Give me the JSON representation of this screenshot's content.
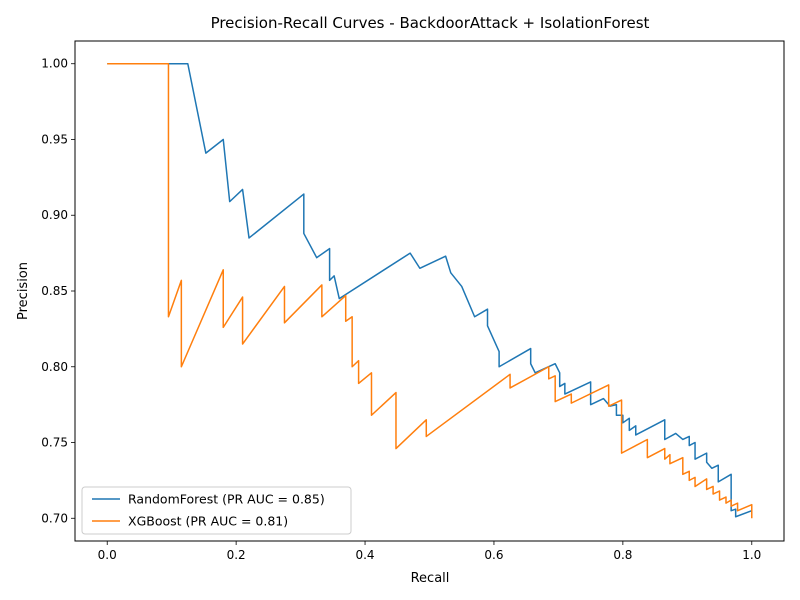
{
  "chart_data": {
    "type": "line",
    "title": "Precision-Recall Curves - BackdoorAttack + IsolationForest",
    "xlabel": "Recall",
    "ylabel": "Precision",
    "xlim": [
      -0.05,
      1.05
    ],
    "ylim": [
      0.685,
      1.015
    ],
    "xticks": [
      0.0,
      0.2,
      0.4,
      0.6,
      0.8,
      1.0
    ],
    "xtick_labels": [
      "0.0",
      "0.2",
      "0.4",
      "0.6",
      "0.8",
      "1.0"
    ],
    "yticks": [
      0.7,
      0.75,
      0.8,
      0.85,
      0.9,
      0.95,
      1.0
    ],
    "ytick_labels": [
      "0.70",
      "0.75",
      "0.80",
      "0.85",
      "0.90",
      "0.95",
      "1.00"
    ],
    "grid": false,
    "legend_position": "lower-left",
    "series": [
      {
        "name": "RandomForest (PR AUC = 0.85)",
        "color": "#1f77b4",
        "points": [
          [
            0.0,
            1.0
          ],
          [
            0.125,
            1.0
          ],
          [
            0.153,
            0.941
          ],
          [
            0.18,
            0.95
          ],
          [
            0.19,
            0.909
          ],
          [
            0.21,
            0.917
          ],
          [
            0.22,
            0.885
          ],
          [
            0.305,
            0.914
          ],
          [
            0.305,
            0.888
          ],
          [
            0.325,
            0.872
          ],
          [
            0.345,
            0.878
          ],
          [
            0.345,
            0.857
          ],
          [
            0.352,
            0.86
          ],
          [
            0.36,
            0.845
          ],
          [
            0.47,
            0.875
          ],
          [
            0.485,
            0.865
          ],
          [
            0.525,
            0.873
          ],
          [
            0.533,
            0.862
          ],
          [
            0.55,
            0.853
          ],
          [
            0.57,
            0.833
          ],
          [
            0.59,
            0.838
          ],
          [
            0.59,
            0.827
          ],
          [
            0.608,
            0.81
          ],
          [
            0.608,
            0.8
          ],
          [
            0.657,
            0.812
          ],
          [
            0.657,
            0.802
          ],
          [
            0.664,
            0.796
          ],
          [
            0.695,
            0.802
          ],
          [
            0.702,
            0.796
          ],
          [
            0.702,
            0.787
          ],
          [
            0.71,
            0.789
          ],
          [
            0.71,
            0.782
          ],
          [
            0.75,
            0.79
          ],
          [
            0.75,
            0.775
          ],
          [
            0.77,
            0.779
          ],
          [
            0.78,
            0.774
          ],
          [
            0.79,
            0.775
          ],
          [
            0.79,
            0.768
          ],
          [
            0.8,
            0.768
          ],
          [
            0.8,
            0.763
          ],
          [
            0.81,
            0.766
          ],
          [
            0.81,
            0.758
          ],
          [
            0.82,
            0.761
          ],
          [
            0.82,
            0.755
          ],
          [
            0.865,
            0.765
          ],
          [
            0.865,
            0.752
          ],
          [
            0.882,
            0.756
          ],
          [
            0.893,
            0.752
          ],
          [
            0.903,
            0.754
          ],
          [
            0.903,
            0.748
          ],
          [
            0.912,
            0.75
          ],
          [
            0.912,
            0.739
          ],
          [
            0.93,
            0.743
          ],
          [
            0.93,
            0.737
          ],
          [
            0.938,
            0.733
          ],
          [
            0.948,
            0.735
          ],
          [
            0.948,
            0.724
          ],
          [
            0.968,
            0.729
          ],
          [
            0.968,
            0.705
          ],
          [
            0.975,
            0.706
          ],
          [
            0.975,
            0.701
          ],
          [
            1.0,
            0.705
          ]
        ]
      },
      {
        "name": "XGBoost (PR AUC = 0.81)",
        "color": "#ff7f0e",
        "points": [
          [
            0.0,
            1.0
          ],
          [
            0.095,
            1.0
          ],
          [
            0.095,
            0.833
          ],
          [
            0.115,
            0.857
          ],
          [
            0.115,
            0.8
          ],
          [
            0.18,
            0.864
          ],
          [
            0.18,
            0.826
          ],
          [
            0.21,
            0.846
          ],
          [
            0.21,
            0.815
          ],
          [
            0.275,
            0.853
          ],
          [
            0.275,
            0.829
          ],
          [
            0.333,
            0.854
          ],
          [
            0.333,
            0.833
          ],
          [
            0.37,
            0.847
          ],
          [
            0.37,
            0.83
          ],
          [
            0.38,
            0.833
          ],
          [
            0.38,
            0.8
          ],
          [
            0.39,
            0.804
          ],
          [
            0.39,
            0.789
          ],
          [
            0.41,
            0.796
          ],
          [
            0.41,
            0.768
          ],
          [
            0.448,
            0.783
          ],
          [
            0.448,
            0.746
          ],
          [
            0.495,
            0.765
          ],
          [
            0.495,
            0.754
          ],
          [
            0.625,
            0.795
          ],
          [
            0.625,
            0.786
          ],
          [
            0.685,
            0.8
          ],
          [
            0.685,
            0.792
          ],
          [
            0.695,
            0.794
          ],
          [
            0.695,
            0.777
          ],
          [
            0.72,
            0.782
          ],
          [
            0.72,
            0.776
          ],
          [
            0.778,
            0.788
          ],
          [
            0.778,
            0.774
          ],
          [
            0.798,
            0.778
          ],
          [
            0.798,
            0.743
          ],
          [
            0.838,
            0.752
          ],
          [
            0.838,
            0.74
          ],
          [
            0.865,
            0.746
          ],
          [
            0.865,
            0.739
          ],
          [
            0.873,
            0.742
          ],
          [
            0.873,
            0.736
          ],
          [
            0.893,
            0.74
          ],
          [
            0.893,
            0.729
          ],
          [
            0.903,
            0.731
          ],
          [
            0.903,
            0.725
          ],
          [
            0.912,
            0.727
          ],
          [
            0.912,
            0.721
          ],
          [
            0.93,
            0.726
          ],
          [
            0.93,
            0.719
          ],
          [
            0.94,
            0.721
          ],
          [
            0.94,
            0.716
          ],
          [
            0.95,
            0.718
          ],
          [
            0.95,
            0.712
          ],
          [
            0.96,
            0.714
          ],
          [
            0.96,
            0.71
          ],
          [
            0.968,
            0.712
          ],
          [
            0.968,
            0.708
          ],
          [
            0.978,
            0.71
          ],
          [
            0.978,
            0.705
          ],
          [
            1.0,
            0.709
          ],
          [
            1.0,
            0.7
          ]
        ]
      }
    ]
  }
}
